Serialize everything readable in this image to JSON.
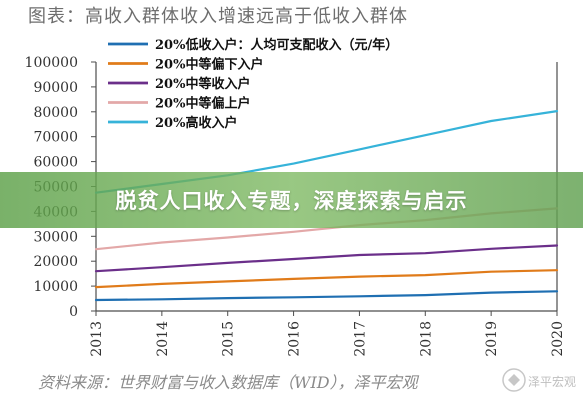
{
  "page": {
    "chart_title": "图表：高收入群体收入增速远高于低收入群体",
    "source": "资料来源：世界财富与收入数据库（WID），泽平宏观",
    "banner_text": "脱贫人口收入专题，深度探索与启示",
    "watermark_text": "泽平宏观"
  },
  "colors": {
    "banner": "#6fae5a",
    "axis": "#4d4d4d",
    "text": "#333333"
  },
  "chart_data": {
    "type": "line",
    "title": "图表：高收入群体收入增速远高于低收入群体",
    "x": [
      2013,
      2014,
      2015,
      2016,
      2017,
      2018,
      2019,
      2020
    ],
    "xlim": [
      2013,
      2020
    ],
    "ylim": [
      0,
      100000
    ],
    "yticks": [
      0,
      10000,
      20000,
      30000,
      40000,
      50000,
      60000,
      70000,
      80000,
      90000,
      100000
    ],
    "ytick_labels": [
      "0",
      "10000",
      "20000",
      "30000",
      "40000",
      "50000",
      "60000",
      "70000",
      "80000",
      "90000",
      "100000"
    ],
    "xtick_labels": [
      "2013",
      "2014",
      "2015",
      "2016",
      "2017",
      "2018",
      "2019",
      "2020"
    ],
    "grid": false,
    "legend_position": "top-left",
    "series": [
      {
        "name": "20%低收入户：人均可支配收入（元/年）",
        "color": "#1f6fb2",
        "values": [
          4400,
          4700,
          5200,
          5500,
          5900,
          6400,
          7400,
          7900
        ]
      },
      {
        "name": "20%中等偏下入户",
        "color": "#e07b1a",
        "values": [
          9600,
          10900,
          11900,
          12900,
          13800,
          14400,
          15800,
          16400
        ]
      },
      {
        "name": "20%中等收入户",
        "color": "#6b2f8a",
        "values": [
          16000,
          17600,
          19300,
          20900,
          22500,
          23200,
          25000,
          26300
        ]
      },
      {
        "name": "20%中等偏上户",
        "color": "#e3a8a8",
        "values": [
          24800,
          27500,
          29500,
          31800,
          34500,
          36500,
          39200,
          41200
        ]
      },
      {
        "name": "20%高收入户",
        "color": "#36b3d9",
        "values": [
          47500,
          51000,
          54500,
          59200,
          64900,
          70600,
          76300,
          80300
        ]
      }
    ]
  }
}
